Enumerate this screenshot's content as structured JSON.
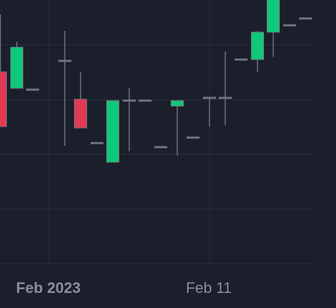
{
  "theme": {
    "background": "#1b1f2b",
    "grid": "#2a2e39",
    "wick": "#727682",
    "up": "#0fc87a",
    "down": "#e03a55",
    "flat": "#727682",
    "tick_label": "#8a8e99"
  },
  "chart_data": {
    "type": "candlestick",
    "title": "",
    "xlabel": "",
    "ylabel": "",
    "grid": true,
    "x_ticks": [
      {
        "label": "Feb 2023",
        "date": "2023-02-01",
        "bold": true
      },
      {
        "label": "Feb 11",
        "date": "2023-02-11",
        "bold": false
      }
    ],
    "candles": [
      {
        "date": "2023-01-28",
        "open": 7.0,
        "high": 7.0,
        "low": 7.0,
        "close": 7.0
      },
      {
        "date": "2023-01-29",
        "open": 7.0,
        "high": 9.1,
        "low": 5.0,
        "close": 5.0
      },
      {
        "date": "2023-01-30",
        "open": 6.4,
        "high": 8.1,
        "low": 6.4,
        "close": 7.9
      },
      {
        "date": "2023-01-31",
        "open": 6.35,
        "high": 6.35,
        "low": 6.35,
        "close": 6.35
      },
      {
        "date": "2023-02-02",
        "open": 7.4,
        "high": 8.5,
        "low": 4.3,
        "close": 7.4
      },
      {
        "date": "2023-02-03",
        "open": 6.0,
        "high": 7.0,
        "low": 4.95,
        "close": 4.95
      },
      {
        "date": "2023-02-04",
        "open": 4.4,
        "high": 4.4,
        "low": 4.4,
        "close": 4.4
      },
      {
        "date": "2023-02-05",
        "open": 3.7,
        "high": 5.95,
        "low": 3.7,
        "close": 5.95
      },
      {
        "date": "2023-02-06",
        "open": 5.95,
        "high": 6.4,
        "low": 4.1,
        "close": 5.95
      },
      {
        "date": "2023-02-07",
        "open": 5.95,
        "high": 5.95,
        "low": 5.95,
        "close": 5.95
      },
      {
        "date": "2023-02-08",
        "open": 4.25,
        "high": 4.25,
        "low": 4.25,
        "close": 4.25
      },
      {
        "date": "2023-02-09",
        "open": 5.75,
        "high": 5.95,
        "low": 3.95,
        "close": 5.95
      },
      {
        "date": "2023-02-10",
        "open": 4.6,
        "high": 4.6,
        "low": 4.6,
        "close": 4.6
      },
      {
        "date": "2023-02-11",
        "open": 6.05,
        "high": 6.05,
        "low": 5.0,
        "close": 6.05
      },
      {
        "date": "2023-02-12",
        "open": 6.05,
        "high": 7.75,
        "low": 5.05,
        "close": 6.05
      },
      {
        "date": "2023-02-13",
        "open": 7.45,
        "high": 7.45,
        "low": 7.45,
        "close": 7.45
      },
      {
        "date": "2023-02-14",
        "open": 7.45,
        "high": 8.5,
        "low": 7.0,
        "close": 8.45
      },
      {
        "date": "2023-02-15",
        "open": 8.45,
        "high": 9.95,
        "low": 7.55,
        "close": 9.95
      },
      {
        "date": "2023-02-16",
        "open": 8.7,
        "high": 8.7,
        "low": 8.7,
        "close": 8.7
      },
      {
        "date": "2023-02-17",
        "open": 8.95,
        "high": 8.95,
        "low": 8.95,
        "close": 8.95
      }
    ]
  }
}
